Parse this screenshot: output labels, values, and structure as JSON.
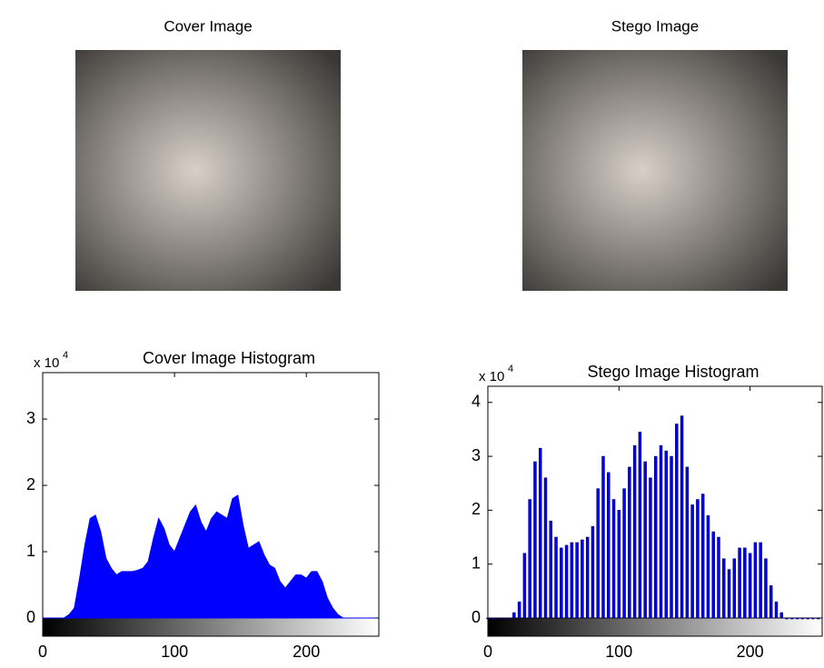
{
  "images": [
    {
      "title": "Cover Image"
    },
    {
      "title": "Stego Image"
    }
  ],
  "chart_data": [
    {
      "type": "area",
      "title": "Cover Image Histogram",
      "y_exponent_base": "x 10",
      "y_exponent": "4",
      "color": "#0000ff",
      "x": [
        0,
        4,
        8,
        12,
        16,
        20,
        24,
        28,
        32,
        36,
        40,
        44,
        48,
        52,
        56,
        60,
        64,
        68,
        72,
        76,
        80,
        84,
        88,
        92,
        96,
        100,
        104,
        108,
        112,
        116,
        120,
        124,
        128,
        132,
        136,
        140,
        144,
        148,
        152,
        156,
        160,
        164,
        168,
        172,
        176,
        180,
        184,
        188,
        192,
        196,
        200,
        204,
        208,
        212,
        216,
        220,
        224,
        228,
        232,
        236,
        240,
        244,
        248,
        252
      ],
      "values": [
        0,
        0,
        0,
        0,
        0,
        0.05,
        0.15,
        0.6,
        1.1,
        1.5,
        1.55,
        1.3,
        0.9,
        0.75,
        0.65,
        0.7,
        0.7,
        0.7,
        0.72,
        0.75,
        0.85,
        1.2,
        1.5,
        1.35,
        1.1,
        1.0,
        1.2,
        1.4,
        1.6,
        1.7,
        1.45,
        1.3,
        1.5,
        1.6,
        1.55,
        1.5,
        1.8,
        1.85,
        1.4,
        1.05,
        1.1,
        1.15,
        0.95,
        0.8,
        0.75,
        0.55,
        0.45,
        0.55,
        0.65,
        0.65,
        0.6,
        0.7,
        0.7,
        0.55,
        0.3,
        0.15,
        0.05,
        0,
        0,
        0,
        0,
        0,
        0,
        0
      ],
      "xlim": [
        0,
        255
      ],
      "ylim": [
        0,
        3.7
      ],
      "xticks": [
        0,
        100,
        200
      ],
      "yticks": [
        0,
        1,
        2,
        3
      ]
    },
    {
      "type": "bar",
      "title": "Stego Image Histogram",
      "y_exponent_base": "x 10",
      "y_exponent": "4",
      "color": "#0000ff",
      "x": [
        0,
        4,
        8,
        12,
        16,
        20,
        24,
        28,
        32,
        36,
        40,
        44,
        48,
        52,
        56,
        60,
        64,
        68,
        72,
        76,
        80,
        84,
        88,
        92,
        96,
        100,
        104,
        108,
        112,
        116,
        120,
        124,
        128,
        132,
        136,
        140,
        144,
        148,
        152,
        156,
        160,
        164,
        168,
        172,
        176,
        180,
        184,
        188,
        192,
        196,
        200,
        204,
        208,
        212,
        216,
        220,
        224,
        228,
        232,
        236,
        240,
        244,
        248,
        252
      ],
      "values": [
        0,
        0,
        0,
        0,
        0,
        0.1,
        0.3,
        1.2,
        2.2,
        2.9,
        3.15,
        2.6,
        1.8,
        1.5,
        1.3,
        1.35,
        1.4,
        1.4,
        1.45,
        1.5,
        1.7,
        2.4,
        3.0,
        2.7,
        2.2,
        2.0,
        2.4,
        2.8,
        3.2,
        3.45,
        2.9,
        2.6,
        3.0,
        3.2,
        3.1,
        3.0,
        3.6,
        3.75,
        2.8,
        2.1,
        2.2,
        2.3,
        1.9,
        1.6,
        1.5,
        1.1,
        0.9,
        1.1,
        1.3,
        1.3,
        1.2,
        1.4,
        1.4,
        1.1,
        0.6,
        0.3,
        0.1,
        0,
        0,
        0,
        0,
        0,
        0,
        0
      ],
      "xlim": [
        0,
        255
      ],
      "ylim": [
        0,
        4.3
      ],
      "xticks": [
        0,
        100,
        200
      ],
      "yticks": [
        0,
        1,
        2,
        3,
        4
      ]
    }
  ]
}
